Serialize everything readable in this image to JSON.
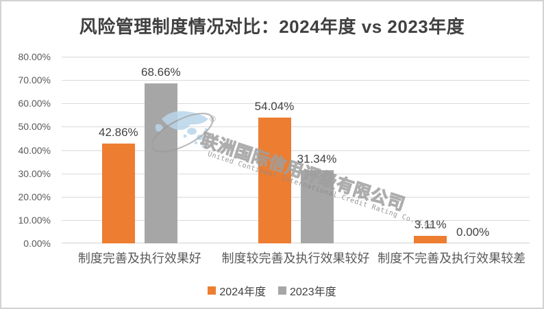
{
  "chart_data": {
    "type": "bar",
    "title": "风险管理制度情况对比：2024年度 vs 2023年度",
    "categories": [
      "制度完善及执行效果好",
      "制度较完善及执行效果较好",
      "制度不完善及执行效果较差"
    ],
    "series": [
      {
        "name": "2024年度",
        "color": "#ED7D31",
        "values": [
          42.86,
          54.04,
          3.11
        ],
        "labels": [
          "42.86%",
          "54.04%",
          "3.11%"
        ]
      },
      {
        "name": "2023年度",
        "color": "#A6A6A6",
        "values": [
          68.66,
          31.34,
          0.0
        ],
        "labels": [
          "68.66%",
          "31.34%",
          "0.00%"
        ]
      }
    ],
    "y_axis": {
      "ticks": [
        {
          "value": 80,
          "label": "80.00%"
        },
        {
          "value": 70,
          "label": "70.00%"
        },
        {
          "value": 60,
          "label": "60.00%"
        },
        {
          "value": 50,
          "label": "50.00%"
        },
        {
          "value": 40,
          "label": "40.00%"
        },
        {
          "value": 30,
          "label": "30.00%"
        },
        {
          "value": 20,
          "label": "20.00%"
        },
        {
          "value": 10,
          "label": "10.00%"
        },
        {
          "value": 0,
          "label": "0.00%"
        }
      ]
    },
    "ylim": [
      0,
      80
    ],
    "grid": true,
    "legend_position": "bottom"
  },
  "watermark": {
    "registered_mark": "®",
    "text_cn": "联洲国际信用评级有限公司",
    "text_en": "United Continent International Credit Rating Co.,Ltd"
  },
  "colors": {
    "title_text": "#404040",
    "axis_text": "#595959",
    "gridline": "#d9d9d9",
    "series_2024": "#ED7D31",
    "series_2023": "#A6A6A6",
    "watermark_gray": "#9e9e9e",
    "watermark_blue": "#b9d6ea"
  }
}
